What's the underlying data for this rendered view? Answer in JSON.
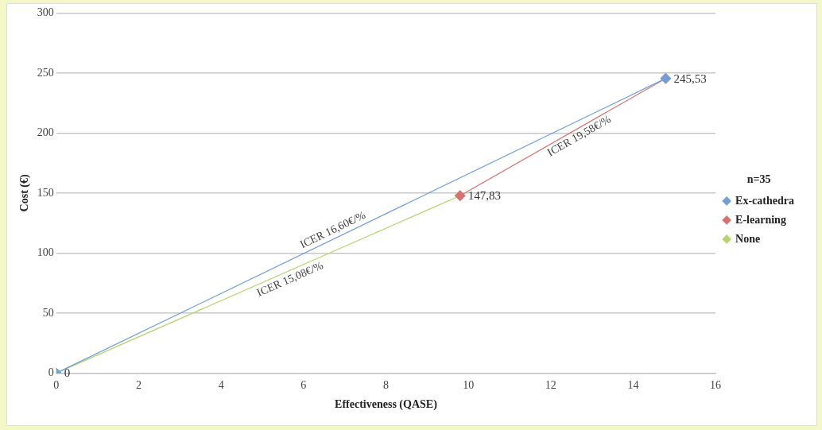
{
  "chart_data": {
    "type": "line",
    "xlabel": "Effectiveness (QASE)",
    "ylabel": "Cost (€)",
    "legend_title": "n=35",
    "series": [
      {
        "name": "Ex-cathedra",
        "color": "#6f9fd8",
        "x": [
          0,
          14.79
        ],
        "values": [
          0,
          245.53
        ],
        "value_labels": [
          null,
          "245,53"
        ]
      },
      {
        "name": "E-learning",
        "color": "#d9706f",
        "x": [
          9.8,
          14.79
        ],
        "values": [
          147.83,
          245.53
        ],
        "value_labels": [
          "147,83",
          null
        ]
      },
      {
        "name": "None",
        "color": "#b5d46a",
        "x": [
          0,
          9.8
        ],
        "values": [
          0,
          147.83
        ],
        "value_labels": [
          "0",
          null
        ]
      }
    ],
    "xlim": [
      0,
      16
    ],
    "xticks": [
      0,
      2,
      4,
      6,
      8,
      10,
      12,
      14,
      16
    ],
    "ylim": [
      0,
      300
    ],
    "yticks": [
      0,
      50,
      100,
      150,
      200,
      250,
      300
    ],
    "grid": "y",
    "legend": "right",
    "marker": "diamond",
    "line_style": "solid",
    "annotations": [
      {
        "text": "ICER 16,60€/%",
        "x": 6.8,
        "y": 113
      },
      {
        "text": "ICER 15,08€/%",
        "x": 5.6,
        "y": 84
      },
      {
        "text": "ICER 19,58€/%",
        "x": 12.6,
        "y": 203
      }
    ]
  }
}
